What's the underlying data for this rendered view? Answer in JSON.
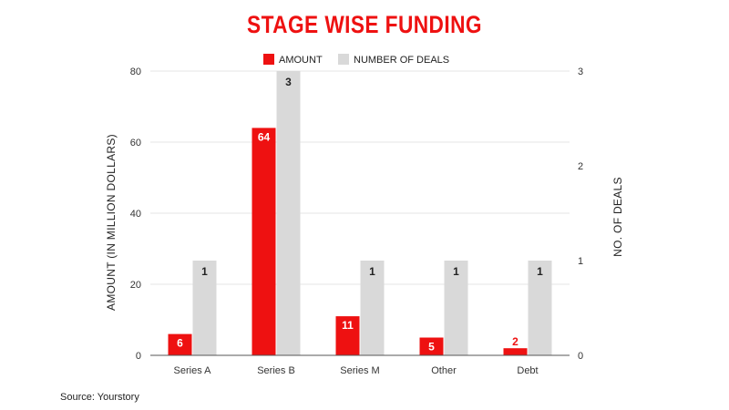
{
  "page": {
    "source_note": "Source: Yourstory"
  },
  "chart_data": {
    "type": "bar",
    "title": "STAGE WISE FUNDING",
    "categories": [
      "Series A",
      "Series B",
      "Series M",
      "Other",
      "Debt"
    ],
    "series": [
      {
        "name": "AMOUNT",
        "axis": "left",
        "color": "#ee1111",
        "values": [
          6,
          64,
          11,
          5,
          2
        ],
        "data_labels": [
          "6",
          "64",
          "11",
          "5",
          "2"
        ]
      },
      {
        "name": "NUMBER OF DEALS",
        "axis": "right",
        "color": "#d9d9d9",
        "values": [
          1,
          3,
          1,
          1,
          1
        ],
        "data_labels": [
          "1",
          "3",
          "1",
          "1",
          "1"
        ]
      }
    ],
    "ylabel": "AMOUNT (IN MILLION DOLLARS)",
    "ylabel_right": "NO. OF DEALS",
    "ylim": [
      0,
      80
    ],
    "ylim_right": [
      0,
      3
    ],
    "yticks": [
      0,
      20,
      40,
      60,
      80
    ],
    "yticks_right": [
      0,
      1,
      2,
      3
    ],
    "grid": true,
    "legend_position": "top-center",
    "title_color": "#ee1111"
  }
}
